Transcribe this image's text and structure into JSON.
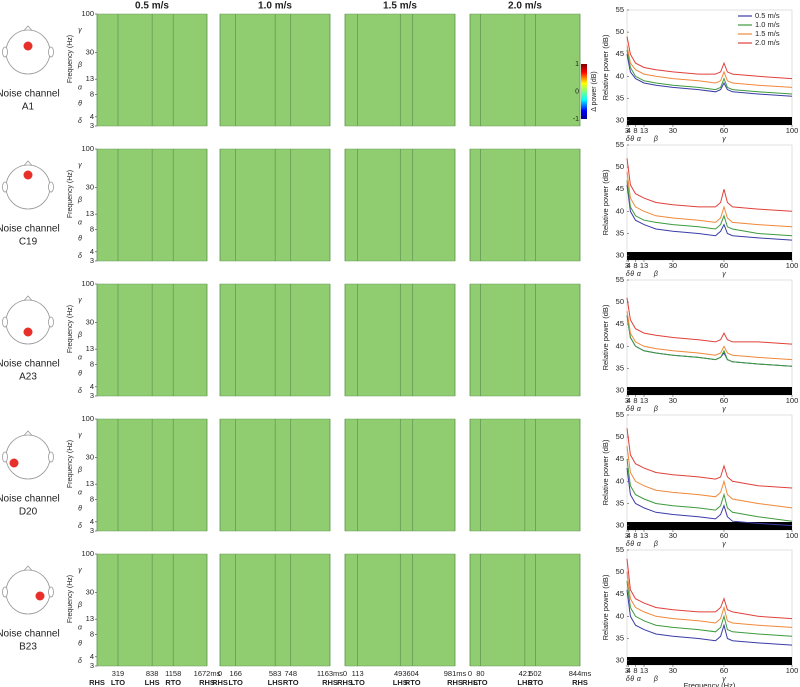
{
  "channels": [
    {
      "label": "Noise channel",
      "name": "A1"
    },
    {
      "label": "Noise channel",
      "name": "C19"
    },
    {
      "label": "Noise channel",
      "name": "A23"
    },
    {
      "label": "Noise channel",
      "name": "D20"
    },
    {
      "label": "Noise channel",
      "name": "B23"
    }
  ],
  "spectrograms": {
    "titles": [
      "0.5 m/s",
      "1.0 m/s",
      "1.5 m/s",
      "2.0 m/s"
    ],
    "ylabel": "Frequency (Hz)",
    "ylim": [
      3,
      100
    ],
    "log_scale": true,
    "yticks": [
      3,
      4,
      8,
      13,
      30,
      100
    ],
    "bands": [
      {
        "value": 3.5,
        "label": "δ"
      },
      {
        "value": 6,
        "label": "θ"
      },
      {
        "value": 10,
        "label": "α"
      },
      {
        "value": 20,
        "label": "β"
      },
      {
        "value": 60,
        "label": "γ"
      }
    ],
    "background": "#8fcd70",
    "gait": [
      {
        "xlim": [
          0,
          1672
        ],
        "xticks": [
          319,
          838,
          1158,
          {
            "value": 1672,
            "label": "1672ms"
          }
        ],
        "events": [
          "RHS",
          "LTO",
          "LHS",
          "RTO",
          "RHS"
        ],
        "event_times": [
          0,
          319,
          838,
          1158,
          1672
        ]
      },
      {
        "xlim": [
          0,
          1163
        ],
        "xticks": [
          0,
          166,
          583,
          748,
          {
            "value": 1163,
            "label": "1163ms"
          }
        ],
        "events": [
          "RHS",
          "LTO",
          "LHS",
          "RTO",
          "RHS"
        ],
        "event_times": [
          0,
          166,
          583,
          748,
          1163
        ]
      },
      {
        "xlim": [
          0,
          981
        ],
        "xticks": [
          0,
          113,
          493,
          604,
          {
            "value": 981,
            "label": "981ms"
          }
        ],
        "events": [
          "RHS",
          "LTO",
          "LHS",
          "RTO",
          "RHS"
        ],
        "event_times": [
          0,
          113,
          493,
          604,
          981
        ]
      },
      {
        "xlim": [
          0,
          844
        ],
        "xticks": [
          0,
          80,
          421,
          502,
          {
            "value": 844,
            "label": "844ms"
          }
        ],
        "events": [
          "RHS",
          "LTO",
          "LHS",
          "RTO",
          "RHS"
        ],
        "event_times": [
          0,
          80,
          421,
          502,
          844
        ]
      }
    ],
    "colorbar": {
      "label": "Δ power (dB)",
      "lim": [
        -1,
        1
      ],
      "ticks": [
        1,
        0,
        -1
      ]
    }
  },
  "chart_data": [
    {
      "type": "line",
      "ylabel": "Relative power (dB)",
      "ylim": [
        29,
        55
      ],
      "yticks": [
        30,
        35,
        40,
        45,
        50,
        55
      ],
      "xlim": [
        3,
        100
      ],
      "xticks": [
        3,
        4,
        8,
        13,
        30,
        60,
        100
      ],
      "legend": "upper right",
      "x": [
        3,
        5,
        8,
        13,
        20,
        30,
        45,
        55,
        58,
        60,
        62,
        65,
        80,
        100
      ],
      "series": [
        {
          "name": "0.5 m/s",
          "color": "#3b3ba8",
          "values": [
            45,
            41,
            39.5,
            38.5,
            38,
            37.5,
            37,
            36.5,
            37,
            38.5,
            37,
            36.5,
            36,
            35.5
          ]
        },
        {
          "name": "1.0 m/s",
          "color": "#3d9a3d",
          "values": [
            46,
            42,
            40,
            39,
            38.5,
            38,
            37.5,
            37,
            37.5,
            39.5,
            37.5,
            37,
            36.5,
            36
          ]
        },
        {
          "name": "1.5 m/s",
          "color": "#f0883a",
          "values": [
            47,
            43,
            41.5,
            40.5,
            40,
            39.5,
            39,
            38.5,
            39,
            41,
            39,
            38.5,
            38,
            37.5
          ]
        },
        {
          "name": "2.0 m/s",
          "color": "#e0403a",
          "values": [
            49,
            45,
            43,
            42,
            41.5,
            41,
            40.5,
            40.5,
            41,
            43,
            41,
            40.5,
            40,
            39.5
          ]
        }
      ]
    },
    {
      "type": "line",
      "ylabel": "Relative power (dB)",
      "ylim": [
        29,
        55
      ],
      "yticks": [
        30,
        35,
        40,
        45,
        50,
        55
      ],
      "xlim": [
        3,
        100
      ],
      "xticks": [
        3,
        4,
        8,
        13,
        30,
        60,
        100
      ],
      "x": [
        3,
        5,
        8,
        13,
        20,
        30,
        45,
        55,
        58,
        60,
        62,
        65,
        80,
        100
      ],
      "series": [
        {
          "color": "#3b3ba8",
          "values": [
            46,
            40,
            38,
            37,
            36,
            35.5,
            35,
            34.5,
            35.5,
            37,
            35,
            34.5,
            34,
            33.5
          ]
        },
        {
          "color": "#3d9a3d",
          "values": [
            47,
            41,
            39,
            38,
            37.5,
            37,
            36.5,
            36,
            37,
            39,
            36.5,
            36,
            35,
            34.5
          ]
        },
        {
          "color": "#f0883a",
          "values": [
            49,
            43,
            41,
            40,
            39,
            38.5,
            38,
            37.5,
            38.5,
            41,
            38.5,
            37.5,
            37,
            36.5
          ]
        },
        {
          "color": "#e0403a",
          "values": [
            52,
            46,
            44,
            43,
            42,
            41.5,
            41,
            41,
            42,
            45,
            42,
            41,
            40.5,
            40
          ]
        }
      ]
    },
    {
      "type": "line",
      "ylabel": "Relative power (dB)",
      "ylim": [
        29,
        55
      ],
      "yticks": [
        30,
        35,
        40,
        45,
        50,
        55
      ],
      "xlim": [
        3,
        100
      ],
      "xticks": [
        3,
        4,
        8,
        13,
        30,
        60,
        100
      ],
      "x": [
        3,
        5,
        8,
        13,
        20,
        30,
        45,
        55,
        58,
        60,
        62,
        65,
        80,
        100
      ],
      "series": [
        {
          "color": "#3b3ba8",
          "values": [
            47,
            42,
            40,
            39,
            38.5,
            38,
            37.5,
            37,
            37.5,
            38.5,
            37,
            36.5,
            36,
            35.5
          ]
        },
        {
          "color": "#3d9a3d",
          "values": [
            47,
            42,
            40,
            39,
            38.5,
            38,
            37.5,
            37,
            37.5,
            39,
            37,
            36.5,
            36,
            35.5
          ]
        },
        {
          "color": "#f0883a",
          "values": [
            48,
            43,
            41,
            40,
            39.5,
            39,
            38.5,
            38,
            38.5,
            40,
            38.5,
            38,
            37.5,
            37
          ]
        },
        {
          "color": "#e0403a",
          "values": [
            51,
            46,
            44,
            43,
            42.5,
            42,
            41.5,
            41,
            41.5,
            43,
            41.5,
            41,
            41,
            40.5
          ]
        }
      ]
    },
    {
      "type": "line",
      "ylabel": "Relative power (dB)",
      "ylim": [
        29,
        55
      ],
      "yticks": [
        30,
        35,
        40,
        45,
        50,
        55
      ],
      "xlim": [
        3,
        100
      ],
      "xticks": [
        3,
        4,
        8,
        13,
        30,
        60,
        100
      ],
      "x": [
        3,
        5,
        8,
        13,
        20,
        30,
        45,
        55,
        58,
        60,
        62,
        65,
        80,
        100
      ],
      "series": [
        {
          "color": "#3b3ba8",
          "values": [
            43,
            37,
            35,
            34,
            33,
            32.5,
            32,
            31.5,
            32.5,
            34.5,
            32,
            31,
            30.5,
            30
          ]
        },
        {
          "color": "#3d9a3d",
          "values": [
            45,
            39,
            37,
            36,
            35,
            34.5,
            34,
            33.5,
            34.5,
            37,
            34,
            33,
            32,
            31
          ]
        },
        {
          "color": "#f0883a",
          "values": [
            48,
            42,
            40,
            39,
            38,
            37.5,
            37,
            36.5,
            37.5,
            40,
            37,
            36,
            35,
            34
          ]
        },
        {
          "color": "#e0403a",
          "values": [
            52,
            46,
            44,
            43,
            42,
            41.5,
            41,
            40.5,
            41,
            43.5,
            41,
            40,
            39,
            38.5
          ]
        }
      ]
    },
    {
      "type": "line",
      "ylabel": "Relative power (dB)",
      "xlabel": "Frequency (Hz)",
      "ylim": [
        29,
        55
      ],
      "yticks": [
        30,
        35,
        40,
        45,
        50,
        55
      ],
      "xlim": [
        3,
        100
      ],
      "xticks": [
        3,
        4,
        8,
        13,
        30,
        60,
        100
      ],
      "x": [
        3,
        5,
        8,
        13,
        20,
        30,
        45,
        55,
        58,
        60,
        62,
        65,
        80,
        100
      ],
      "series": [
        {
          "color": "#3b3ba8",
          "values": [
            46,
            40,
            38,
            37,
            36,
            35.5,
            35,
            34.5,
            35.5,
            38,
            35,
            34.5,
            34,
            33.5
          ]
        },
        {
          "color": "#3d9a3d",
          "values": [
            48,
            42,
            40,
            39,
            38,
            37.5,
            37,
            36.5,
            37.5,
            40,
            37,
            36.5,
            36,
            35.5
          ]
        },
        {
          "color": "#f0883a",
          "values": [
            50,
            44,
            42,
            41,
            40,
            39.5,
            39,
            38.5,
            39.5,
            42,
            39,
            38.5,
            38,
            37.5
          ]
        },
        {
          "color": "#e0403a",
          "values": [
            53,
            46,
            44,
            43,
            42,
            41.5,
            41,
            41,
            42,
            44,
            41.5,
            41,
            40,
            39.5
          ]
        }
      ]
    }
  ]
}
